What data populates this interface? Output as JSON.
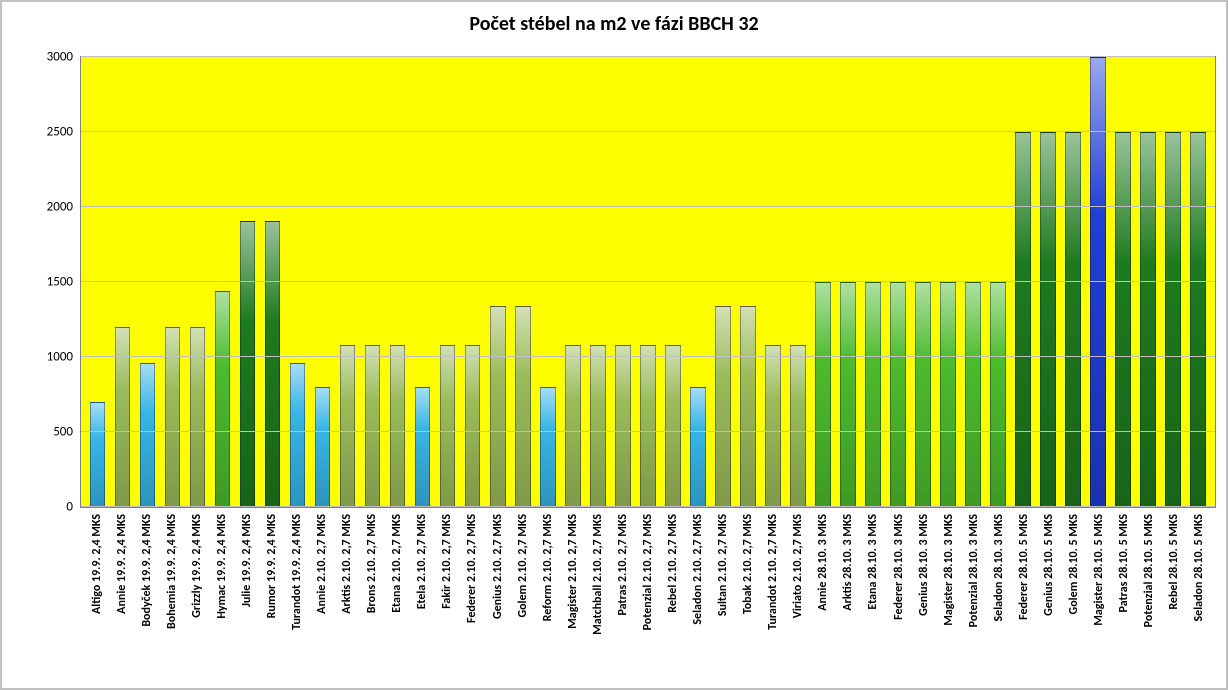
{
  "chart": {
    "type": "bar",
    "title": "Počet stébel na m2 ve fázi BBCH 32",
    "title_fontsize": 20,
    "title_weight": "bold",
    "background_color": "#ffffff",
    "plot_background_color": "#ffff00",
    "grid_color": "#bfbfbf",
    "axis_color": "#808080",
    "label_fontsize": 12,
    "label_weight": "bold",
    "y_tick_fontsize": 13,
    "ylim": [
      0,
      3000
    ],
    "ytick_step": 500,
    "yticks": [
      0,
      500,
      1000,
      1500,
      2000,
      2500,
      3000
    ],
    "bar_width_ratio": 0.62,
    "color_palette_note": {
      "light_blue": "#37b5e6",
      "olive": "#9bbb59",
      "bright_green": "#4dbb2d",
      "dark_green": "#1e7a1e",
      "royal_blue": "#1f3fd4"
    },
    "categories": [
      "Altigo 19.9. 2,4 MKS",
      "Annie 19.9. 2,4 MKS",
      "Bodyček 19.9. 2,4 MKS",
      "Bohemia 19.9. 2,4 MKS",
      "Grizzly 19.9. 2,4 MKS",
      "Hymac 19.9. 2,4 MKS",
      "Julie 19.9. 2,4 MKS",
      "Rumor 19.9. 2,4 MKS",
      "Turandot 19.9. 2,4 MKS",
      "Annie 2.10.  2,7 MKS",
      "Arktis 2.10. 2,7 MKS",
      "Brons 2.10. 2,7 MKS",
      "Etana 2.10. 2,7 MKS",
      "Etela 2.10. 2,7 MKS",
      "Fakir 2.10. 2,7 MKS",
      "Federer 2.10. 2,7 MKS",
      "Genius 2.10. 2,7 MKS",
      "Golem 2.10. 2,7 MKS",
      "Reform 2.10. 2,7 MKS",
      "Magister 2.10. 2,7 MKS",
      "Matchball 2.10. 2,7 MKS",
      "Patras 2.10. 2,7 MKS",
      "Potenzial 2.10. 2,7 MKS",
      "Rebel 2.10. 2,7 MKS",
      "Seladon 2.10. 2,7 MKS",
      "Sultan 2.10. 2,7 MKS",
      "Tobak 2.10. 2,7 MKS",
      "Turandot 2.10. 2,7 MKS",
      "Viriato 2.10. 2,7 MKS",
      "Annie 28.10.  3 MKS",
      "Arktis 28.10.  3 MKS",
      "Etana 28.10.  3 MKS",
      "Federer 28.10.  3 MKS",
      "Genius 28.10.  3 MKS",
      "Magister 28.10.  3 MKS",
      "Potenzial 28.10.  3 MKS",
      "Seladon 28.10.  3 MKS",
      "Federer 28.10.  5 MKS",
      "Genius 28.10.  5 MKS",
      "Golem 28.10.  5 MKS",
      "Magister 28.10.  5 MKS",
      "Patras 28.10.  5 MKS",
      "Potenzial 28.10.  5 MKS",
      "Rebel 28.10.  5 MKS",
      "Seladon 28.10.  5 MKS"
    ],
    "values": [
      700,
      1200,
      960,
      1200,
      1200,
      1440,
      1910,
      1910,
      960,
      800,
      1080,
      1080,
      1080,
      800,
      1080,
      1080,
      1340,
      1340,
      800,
      1080,
      1080,
      1080,
      1080,
      1080,
      800,
      1340,
      1340,
      1080,
      1080,
      1500,
      1500,
      1500,
      1500,
      1500,
      1500,
      1500,
      1500,
      2500,
      2500,
      2500,
      3000,
      2500,
      2500,
      2500,
      2500
    ],
    "bar_colors": [
      "#37b5e6",
      "#9bbb59",
      "#37b5e6",
      "#9bbb59",
      "#9bbb59",
      "#4dbb2d",
      "#1e7a1e",
      "#1e7a1e",
      "#37b5e6",
      "#37b5e6",
      "#9bbb59",
      "#9bbb59",
      "#9bbb59",
      "#37b5e6",
      "#9bbb59",
      "#9bbb59",
      "#9bbb59",
      "#9bbb59",
      "#37b5e6",
      "#9bbb59",
      "#9bbb59",
      "#9bbb59",
      "#9bbb59",
      "#9bbb59",
      "#37b5e6",
      "#9bbb59",
      "#9bbb59",
      "#9bbb59",
      "#9bbb59",
      "#4dbb2d",
      "#4dbb2d",
      "#4dbb2d",
      "#4dbb2d",
      "#4dbb2d",
      "#4dbb2d",
      "#4dbb2d",
      "#4dbb2d",
      "#1e7a1e",
      "#1e7a1e",
      "#1e7a1e",
      "#1f3fd4",
      "#1e7a1e",
      "#1e7a1e",
      "#1e7a1e",
      "#1e7a1e"
    ]
  }
}
